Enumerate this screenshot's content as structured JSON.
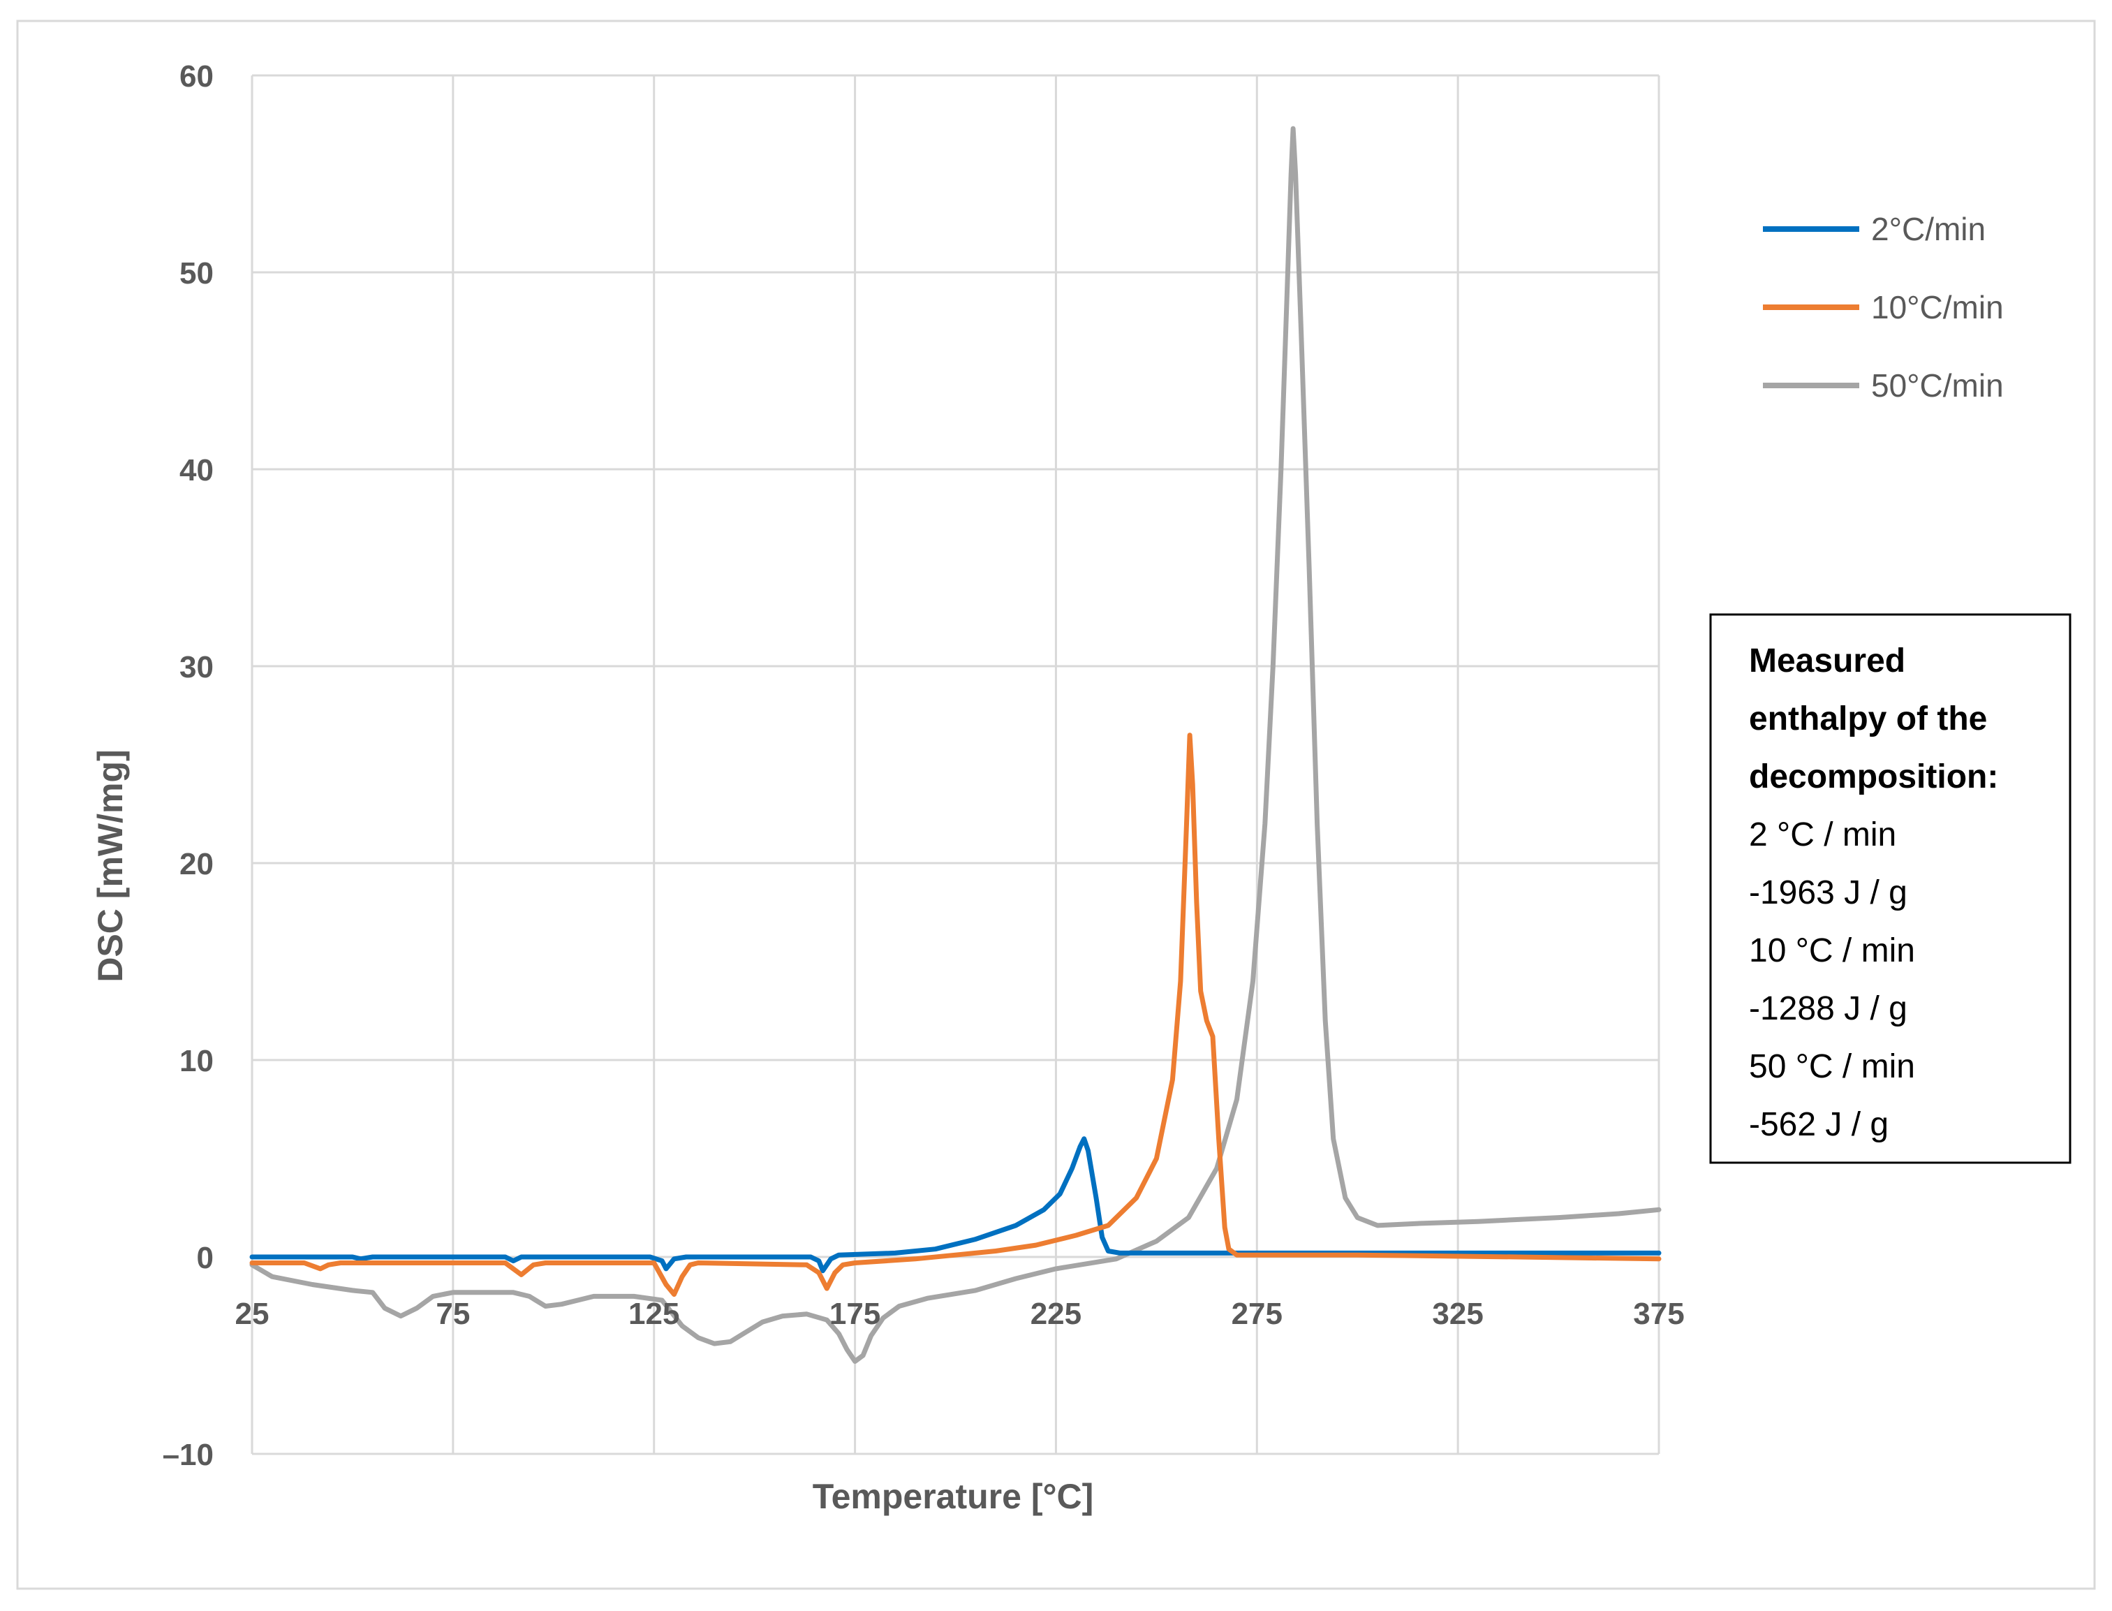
{
  "chart_data": {
    "type": "line",
    "xlabel": "Temperature [°C]",
    "ylabel": "DSC [mW/mg]",
    "xlim": [
      25,
      375
    ],
    "ylim": [
      -10,
      60
    ],
    "x_ticks": [
      25,
      75,
      125,
      175,
      225,
      275,
      325,
      375
    ],
    "y_ticks": [
      -10,
      0,
      10,
      20,
      30,
      40,
      50,
      60
    ],
    "y_tick_labels": [
      "–10",
      "0",
      "10",
      "20",
      "30",
      "40",
      "50",
      "60"
    ],
    "grid": true,
    "legend_position": "right",
    "series": [
      {
        "name": "2°C/min",
        "color": "#0070c0",
        "points": [
          [
            25,
            0
          ],
          [
            50,
            0
          ],
          [
            52,
            -0.1
          ],
          [
            55,
            0
          ],
          [
            88,
            0
          ],
          [
            90,
            -0.2
          ],
          [
            92,
            0
          ],
          [
            124,
            0
          ],
          [
            127,
            -0.2
          ],
          [
            128,
            -0.6
          ],
          [
            130,
            -0.1
          ],
          [
            133,
            0
          ],
          [
            164,
            0
          ],
          [
            166,
            -0.2
          ],
          [
            167,
            -0.7
          ],
          [
            169,
            -0.1
          ],
          [
            171,
            0.1
          ],
          [
            185,
            0.2
          ],
          [
            195,
            0.4
          ],
          [
            205,
            0.9
          ],
          [
            215,
            1.6
          ],
          [
            222,
            2.4
          ],
          [
            226,
            3.2
          ],
          [
            229,
            4.5
          ],
          [
            231,
            5.6
          ],
          [
            232,
            6.0
          ],
          [
            233,
            5.4
          ],
          [
            235,
            3.0
          ],
          [
            236.5,
            1.0
          ],
          [
            238,
            0.3
          ],
          [
            241,
            0.2
          ],
          [
            300,
            0.2
          ],
          [
            375,
            0.2
          ]
        ]
      },
      {
        "name": "10°C/min",
        "color": "#ed7d31",
        "points": [
          [
            25,
            -0.3
          ],
          [
            38,
            -0.3
          ],
          [
            42,
            -0.6
          ],
          [
            44,
            -0.4
          ],
          [
            47,
            -0.3
          ],
          [
            88,
            -0.3
          ],
          [
            92,
            -0.9
          ],
          [
            95,
            -0.4
          ],
          [
            98,
            -0.3
          ],
          [
            125,
            -0.3
          ],
          [
            128,
            -1.4
          ],
          [
            130,
            -1.9
          ],
          [
            132,
            -1.0
          ],
          [
            134,
            -0.4
          ],
          [
            136,
            -0.3
          ],
          [
            163,
            -0.4
          ],
          [
            166,
            -0.8
          ],
          [
            168,
            -1.6
          ],
          [
            170,
            -0.8
          ],
          [
            172,
            -0.4
          ],
          [
            175,
            -0.3
          ],
          [
            190,
            -0.1
          ],
          [
            200,
            0.1
          ],
          [
            210,
            0.3
          ],
          [
            220,
            0.6
          ],
          [
            230,
            1.1
          ],
          [
            238,
            1.6
          ],
          [
            245,
            3.0
          ],
          [
            250,
            5.0
          ],
          [
            254,
            9.0
          ],
          [
            256,
            14.0
          ],
          [
            257.5,
            22.0
          ],
          [
            258.3,
            26.5
          ],
          [
            259,
            24.0
          ],
          [
            260,
            18.0
          ],
          [
            261,
            13.5
          ],
          [
            262.5,
            12.0
          ],
          [
            264,
            11.2
          ],
          [
            265.5,
            6.0
          ],
          [
            267,
            1.5
          ],
          [
            268,
            0.4
          ],
          [
            270,
            0.1
          ],
          [
            300,
            0.1
          ],
          [
            340,
            0
          ],
          [
            375,
            -0.1
          ]
        ]
      },
      {
        "name": "50°C/min",
        "color": "#a5a5a5",
        "points": [
          [
            25,
            -0.4
          ],
          [
            30,
            -1.0
          ],
          [
            40,
            -1.4
          ],
          [
            50,
            -1.7
          ],
          [
            55,
            -1.8
          ],
          [
            58,
            -2.6
          ],
          [
            62,
            -3.0
          ],
          [
            66,
            -2.6
          ],
          [
            70,
            -2.0
          ],
          [
            75,
            -1.8
          ],
          [
            90,
            -1.8
          ],
          [
            94,
            -2.0
          ],
          [
            98,
            -2.5
          ],
          [
            102,
            -2.4
          ],
          [
            110,
            -2.0
          ],
          [
            120,
            -2.0
          ],
          [
            127,
            -2.2
          ],
          [
            132,
            -3.5
          ],
          [
            136,
            -4.1
          ],
          [
            140,
            -4.4
          ],
          [
            144,
            -4.3
          ],
          [
            148,
            -3.8
          ],
          [
            152,
            -3.3
          ],
          [
            157,
            -3.0
          ],
          [
            163,
            -2.9
          ],
          [
            168,
            -3.2
          ],
          [
            171,
            -3.9
          ],
          [
            173,
            -4.7
          ],
          [
            175,
            -5.3
          ],
          [
            177,
            -5.0
          ],
          [
            179,
            -4.0
          ],
          [
            182,
            -3.1
          ],
          [
            186,
            -2.5
          ],
          [
            193,
            -2.1
          ],
          [
            205,
            -1.7
          ],
          [
            215,
            -1.1
          ],
          [
            225,
            -0.6
          ],
          [
            240,
            -0.1
          ],
          [
            250,
            0.8
          ],
          [
            258,
            2.0
          ],
          [
            265,
            4.5
          ],
          [
            270,
            8.0
          ],
          [
            274,
            14.0
          ],
          [
            277,
            22.0
          ],
          [
            279,
            30.0
          ],
          [
            281,
            40.0
          ],
          [
            282.5,
            49.0
          ],
          [
            283.5,
            55.0
          ],
          [
            284,
            57.3
          ],
          [
            284.6,
            55.0
          ],
          [
            286,
            47.0
          ],
          [
            288,
            35.0
          ],
          [
            290,
            22.0
          ],
          [
            292,
            12.0
          ],
          [
            294,
            6.0
          ],
          [
            297,
            3.0
          ],
          [
            300,
            2.0
          ],
          [
            305,
            1.6
          ],
          [
            315,
            1.7
          ],
          [
            330,
            1.8
          ],
          [
            350,
            2.0
          ],
          [
            365,
            2.2
          ],
          [
            375,
            2.4
          ]
        ]
      }
    ],
    "annotation": {
      "lines": [
        "Measured",
        "enthalpy of the",
        "decomposition:",
        "2 °C / min",
        "-1963 J / g",
        "10 °C / min",
        "-1288 J / g",
        "50 °C / min",
        "-562 J / g"
      ],
      "bold_line_count": 3
    }
  }
}
